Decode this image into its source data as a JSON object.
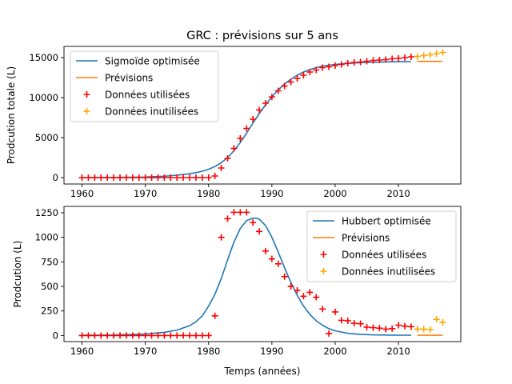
{
  "figure": {
    "title": "GRC : prévisions sur 5 ans",
    "xlabel": "Temps (années)"
  },
  "colors": {
    "fit": "#1f77b4",
    "forecast": "#ff7f0e",
    "used": "#ff0000",
    "unused": "#ffa500"
  },
  "chart_data": [
    {
      "type": "scatter",
      "ylabel": "Prodcution totale (L)",
      "xlim": [
        1957.15,
        2019.85
      ],
      "ylim": [
        -800,
        16400
      ],
      "xticks": [
        1960,
        1970,
        1980,
        1990,
        2000,
        2010
      ],
      "yticks": [
        0,
        5000,
        10000,
        15000
      ],
      "grid": false,
      "legend_position": "top-left",
      "legend": [
        "Sigmoïde optimisée",
        "Prévisions",
        "Données utilisées",
        "Données inutilisées"
      ],
      "series": [
        {
          "name": "Sigmoïde optimisée",
          "kind": "line",
          "x": [
            1960,
            1965,
            1970,
            1973,
            1975,
            1977,
            1978,
            1979,
            1980,
            1981,
            1982,
            1983,
            1984,
            1985,
            1986,
            1987,
            1988,
            1989,
            1990,
            1991,
            1992,
            1993,
            1994,
            1995,
            1996,
            1997,
            1998,
            2000,
            2003,
            2006,
            2009,
            2012
          ],
          "y": [
            0,
            20,
            70,
            170,
            300,
            480,
            620,
            800,
            1040,
            1380,
            1850,
            2500,
            3350,
            4380,
            5550,
            6800,
            8000,
            9100,
            10100,
            10950,
            11700,
            12300,
            12800,
            13200,
            13500,
            13750,
            13950,
            14150,
            14330,
            14430,
            14480,
            14500
          ]
        },
        {
          "name": "Prévisions",
          "kind": "line",
          "x": [
            2013,
            2017
          ],
          "y": [
            14520,
            14530
          ]
        },
        {
          "name": "Données utilisées",
          "kind": "scatter",
          "x": [
            1960,
            1961,
            1962,
            1963,
            1964,
            1965,
            1966,
            1967,
            1968,
            1969,
            1970,
            1971,
            1972,
            1973,
            1974,
            1975,
            1976,
            1977,
            1978,
            1979,
            1980,
            1981,
            1982,
            1983,
            1984,
            1985,
            1986,
            1987,
            1988,
            1989,
            1990,
            1991,
            1992,
            1993,
            1994,
            1995,
            1996,
            1997,
            1998,
            1999,
            2000,
            2001,
            2002,
            2003,
            2004,
            2005,
            2006,
            2007,
            2008,
            2009,
            2010,
            2011,
            2012
          ],
          "y": [
            0,
            0,
            0,
            0,
            0,
            0,
            0,
            0,
            0,
            0,
            0,
            0,
            0,
            0,
            0,
            0,
            0,
            0,
            0,
            0,
            0,
            200,
            1200,
            2400,
            3650,
            4900,
            6150,
            7300,
            8450,
            9300,
            10080,
            10850,
            11450,
            11950,
            12400,
            12800,
            13200,
            13450,
            13750,
            13850,
            14000,
            14150,
            14300,
            14400,
            14450,
            14550,
            14650,
            14700,
            14750,
            14850,
            14900,
            15000,
            15100
          ]
        },
        {
          "name": "Données inutilisées",
          "kind": "scatter",
          "x": [
            2013,
            2014,
            2015,
            2016,
            2017
          ],
          "y": [
            15150,
            15250,
            15350,
            15500,
            15650
          ]
        }
      ]
    },
    {
      "type": "scatter",
      "ylabel": "Prodcution (L)",
      "xlim": [
        1957.15,
        2019.85
      ],
      "ylim": [
        -62,
        1315
      ],
      "xticks": [
        1960,
        1970,
        1980,
        1990,
        2000,
        2010
      ],
      "yticks": [
        0,
        250,
        500,
        750,
        1000,
        1250
      ],
      "grid": false,
      "legend_position": "top-right",
      "legend": [
        "Hubbert optimisée",
        "Prévisions",
        "Données utilisées",
        "Données inutilisées"
      ],
      "series": [
        {
          "name": "Hubbert optimisée",
          "kind": "line",
          "x": [
            1960,
            1965,
            1970,
            1973,
            1975,
            1977,
            1978,
            1979,
            1980,
            1981,
            1982,
            1983,
            1984,
            1985,
            1986,
            1987,
            1987.5,
            1988,
            1989,
            1990,
            1991,
            1992,
            1993,
            1994,
            1995,
            1996,
            1997,
            1998,
            1999,
            2000,
            2002,
            2004,
            2006,
            2009,
            2012
          ],
          "y": [
            3,
            5,
            15,
            32,
            55,
            100,
            140,
            200,
            300,
            420,
            580,
            770,
            950,
            1090,
            1170,
            1195,
            1195,
            1185,
            1120,
            1000,
            850,
            690,
            540,
            410,
            300,
            215,
            150,
            105,
            70,
            48,
            22,
            12,
            7,
            4,
            3
          ]
        },
        {
          "name": "Prévisions",
          "kind": "line",
          "x": [
            2013,
            2017
          ],
          "y": [
            3,
            3
          ]
        },
        {
          "name": "Données utilisées",
          "kind": "scatter",
          "x": [
            1960,
            1961,
            1962,
            1963,
            1964,
            1965,
            1966,
            1967,
            1968,
            1969,
            1970,
            1971,
            1972,
            1973,
            1974,
            1975,
            1976,
            1977,
            1978,
            1979,
            1980,
            1981,
            1982,
            1983,
            1984,
            1985,
            1986,
            1987,
            1988,
            1989,
            1990,
            1991,
            1992,
            1993,
            1994,
            1995,
            1996,
            1997,
            1998,
            1999,
            2000,
            2001,
            2002,
            2003,
            2004,
            2005,
            2006,
            2007,
            2008,
            2009,
            2010,
            2011,
            2012
          ],
          "y": [
            0,
            0,
            0,
            0,
            0,
            0,
            0,
            0,
            0,
            0,
            0,
            0,
            0,
            0,
            0,
            0,
            0,
            0,
            0,
            0,
            0,
            200,
            1000,
            1190,
            1255,
            1255,
            1255,
            1150,
            1060,
            860,
            780,
            730,
            600,
            500,
            460,
            400,
            440,
            390,
            270,
            20,
            240,
            155,
            150,
            125,
            120,
            85,
            80,
            75,
            65,
            70,
            105,
            95,
            90
          ]
        },
        {
          "name": "Données inutilisées",
          "kind": "scatter",
          "x": [
            2013,
            2014,
            2015,
            2016,
            2017
          ],
          "y": [
            65,
            65,
            60,
            165,
            135
          ]
        }
      ]
    }
  ]
}
